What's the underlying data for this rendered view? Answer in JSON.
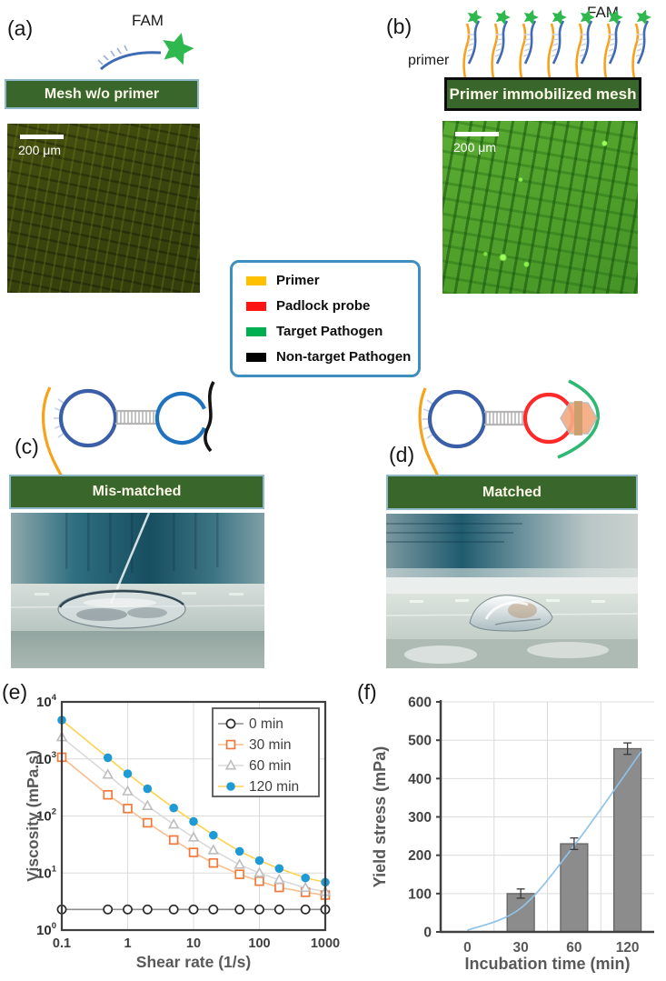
{
  "figure": {
    "panel_a": {
      "label": "(a)",
      "fam_label": "FAM",
      "banner": "Mesh w/o primer",
      "scale_bar": "200 μm"
    },
    "panel_b": {
      "label": "(b)",
      "fam_label": "FAM",
      "primer_label": "primer",
      "banner": "Primer immobilized mesh",
      "scale_bar": "200 μm",
      "probe_count": 7
    },
    "legend": {
      "items": [
        {
          "label": "Primer",
          "color": "#FFC000"
        },
        {
          "label": "Padlock probe",
          "color": "#FF1414"
        },
        {
          "label": "Target Pathogen",
          "color": "#00B050"
        },
        {
          "label": "Non-target Pathogen",
          "color": "#000000"
        }
      ]
    },
    "panel_c": {
      "label": "(c)",
      "banner": "Mis-matched"
    },
    "panel_d": {
      "label": "(d)",
      "banner": "Matched"
    },
    "panel_e": {
      "label": "(e)"
    },
    "panel_f": {
      "label": "(f)"
    },
    "palette": {
      "banner_green": "#39672B",
      "primer_orange": "#F7A21B",
      "probe_blue": "#3F6BB3",
      "star_green": "#2FB84D"
    }
  },
  "chart_data": [
    {
      "type": "line",
      "title": "",
      "xlabel": "Shear rate (1/s)",
      "ylabel": "Viscosity (mPa.s)",
      "xscale": "log",
      "yscale": "log",
      "xlim": [
        0.1,
        1000
      ],
      "ylim": [
        1,
        10000
      ],
      "x_ticks": [
        "0.1",
        "1",
        "10",
        "100",
        "1000"
      ],
      "y_tick_exponents": [
        0,
        1,
        2,
        3,
        4
      ],
      "grid": true,
      "legend_position": "top-right",
      "x": [
        0.1,
        0.5,
        1,
        2,
        5,
        10,
        20,
        50,
        100,
        200,
        500,
        1000
      ],
      "series": [
        {
          "name": "0 min",
          "marker": "open-circle",
          "marker_color": "#2b2b2b",
          "line_color": "#8f8f8f",
          "values": [
            2.3,
            2.3,
            2.3,
            2.3,
            2.3,
            2.3,
            2.3,
            2.3,
            2.3,
            2.3,
            2.3,
            2.3
          ]
        },
        {
          "name": "30 min",
          "marker": "open-square",
          "marker_color": "#F2793B",
          "line_color": "#F9BD90",
          "values": [
            1070,
            235,
            135,
            76,
            38,
            23,
            15,
            9.5,
            7.2,
            5.6,
            4.6,
            4.1
          ]
        },
        {
          "name": "60 min",
          "marker": "open-triangle",
          "marker_color": "#BDBDBD",
          "line_color": "#DADADA",
          "values": [
            2400,
            530,
            270,
            150,
            71,
            42,
            25,
            14,
            10,
            7.6,
            5.5,
            4.7
          ]
        },
        {
          "name": "120 min",
          "marker": "filled-circle",
          "marker_color": "#1E9BD7",
          "line_color": "#FFD24D",
          "values": [
            4800,
            1050,
            550,
            300,
            138,
            80,
            46,
            24,
            16.5,
            12,
            8.2,
            6.9
          ]
        }
      ]
    },
    {
      "type": "bar",
      "title": "",
      "xlabel": "Incubation time (min)",
      "ylabel": "Yield stress (mPa)",
      "ylim": [
        0,
        600
      ],
      "y_ticks": [
        0,
        100,
        200,
        300,
        400,
        500,
        600
      ],
      "categories": [
        "0",
        "30",
        "60",
        "120"
      ],
      "values": [
        0,
        100,
        230,
        478
      ],
      "errors": [
        0,
        12,
        15,
        15
      ],
      "grid": true,
      "bar_color": "#8C8C8C",
      "bar_edge_color": "#5f5f5f",
      "trend_color": "#8FC3E8",
      "trend_points": [
        [
          0,
          4
        ],
        [
          30,
          62
        ],
        [
          60,
          225
        ],
        [
          120,
          470
        ]
      ]
    }
  ]
}
